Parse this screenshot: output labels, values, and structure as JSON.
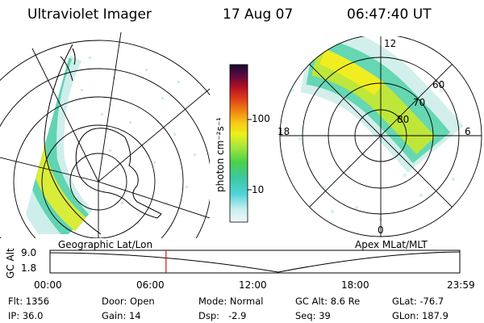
{
  "header": {
    "title": "Ultraviolet Imager",
    "date": "17 Aug 07",
    "time": "06:47:40 UT"
  },
  "colorbar": {
    "unit_label": "photon cm⁻²s⁻¹",
    "ticks": [
      {
        "label": "100",
        "value": 100
      },
      {
        "label": "10",
        "value": 10
      }
    ],
    "colors": [
      "#f2f7f7",
      "#c8eef0",
      "#4fd3d8",
      "#3ec7a2",
      "#4ad24a",
      "#a8e63c",
      "#ecf018",
      "#f7c818",
      "#f08a10",
      "#e0401a",
      "#b01024",
      "#5a0a40",
      "#1a0830"
    ]
  },
  "left_map": {
    "caption": "Geographic Lat/Lon"
  },
  "right_map": {
    "caption": "Apex MLat/MLT",
    "mlt_labels": {
      "top": "12",
      "left": "18",
      "right": "6",
      "bottom": "0"
    },
    "lat_labels": [
      "60",
      "70",
      "80"
    ]
  },
  "timeline": {
    "axis_label": "GC Alt",
    "y_labels": [
      "9.0",
      "1.8"
    ],
    "ticks": [
      "00:00",
      "06:00",
      "12:00",
      "18:00",
      "23:59"
    ],
    "marker_time_hours": 6.79,
    "marker_color": "#e01010"
  },
  "info": {
    "flt_label": "Flt:",
    "flt": "1356",
    "ip_label": "IP:",
    "ip": "36.0",
    "door_label": "Door:",
    "door": "Open",
    "gain_label": "Gain:",
    "gain": "14",
    "mode_label": "Mode:",
    "mode": "Normal",
    "dsp_label": "Dsp:",
    "dsp": "-2.9",
    "gcalt_label": "GC Alt:",
    "gcalt": "8.6 Re",
    "seq_label": "Seq:",
    "seq": "39",
    "glat_label": "GLat:",
    "glat": "-76.7",
    "glon_label": "GLon:",
    "glon": "187.9"
  }
}
